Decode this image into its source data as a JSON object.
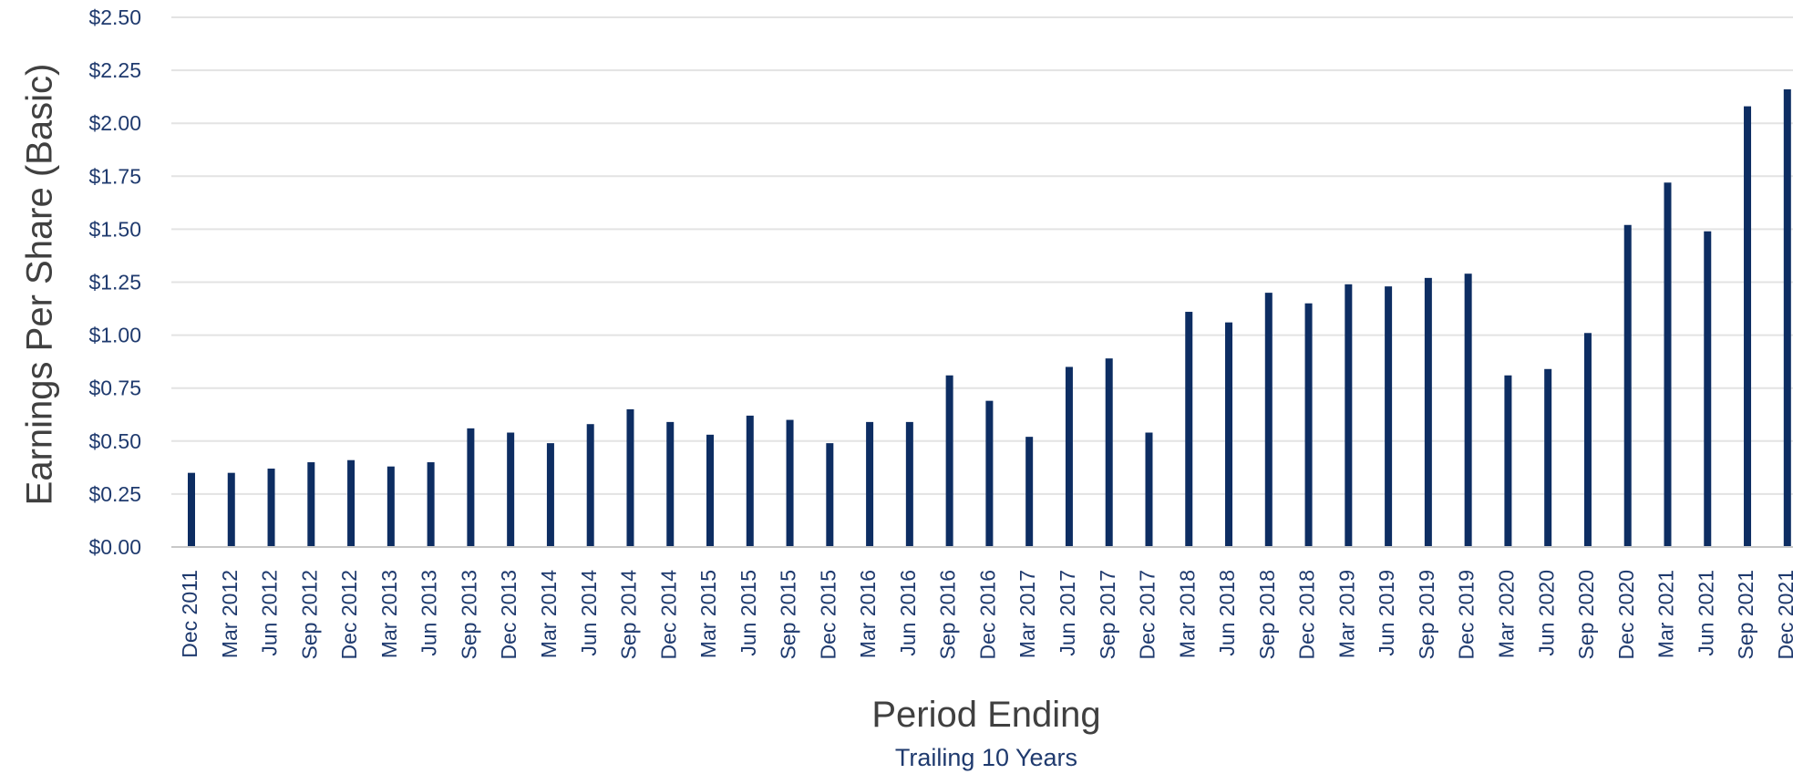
{
  "chart_data": {
    "type": "bar",
    "ylabel": "Earnings Per Share (Basic)",
    "xlabel": "Period Ending",
    "subtitle": "Trailing 10 Years",
    "ylim": [
      0,
      2.5
    ],
    "yticks": [
      0,
      0.25,
      0.5,
      0.75,
      1.0,
      1.25,
      1.5,
      1.75,
      2.0,
      2.25,
      2.5
    ],
    "ytick_labels": [
      "$0.00",
      "$0.25",
      "$0.50",
      "$0.75",
      "$1.00",
      "$1.25",
      "$1.50",
      "$1.75",
      "$2.00",
      "$2.25",
      "$2.50"
    ],
    "grid": true,
    "bar_color": "#0d2d62",
    "categories": [
      "Dec 2011",
      "Mar 2012",
      "Jun 2012",
      "Sep 2012",
      "Dec 2012",
      "Mar 2013",
      "Jun 2013",
      "Sep 2013",
      "Dec 2013",
      "Mar 2014",
      "Jun 2014",
      "Sep 2014",
      "Dec 2014",
      "Mar 2015",
      "Jun 2015",
      "Sep 2015",
      "Dec 2015",
      "Mar 2016",
      "Jun 2016",
      "Sep 2016",
      "Dec 2016",
      "Mar 2017",
      "Jun 2017",
      "Sep 2017",
      "Dec 2017",
      "Mar 2018",
      "Jun 2018",
      "Sep 2018",
      "Dec 2018",
      "Mar 2019",
      "Jun 2019",
      "Sep 2019",
      "Dec 2019",
      "Mar 2020",
      "Jun 2020",
      "Sep 2020",
      "Dec 2020",
      "Mar 2021",
      "Jun 2021",
      "Sep 2021",
      "Dec 2021"
    ],
    "values": [
      0.35,
      0.35,
      0.37,
      0.4,
      0.41,
      0.38,
      0.4,
      0.56,
      0.54,
      0.49,
      0.58,
      0.65,
      0.59,
      0.53,
      0.62,
      0.6,
      0.49,
      0.59,
      0.59,
      0.81,
      0.69,
      0.52,
      0.85,
      0.89,
      0.54,
      1.11,
      1.06,
      1.2,
      1.15,
      1.24,
      1.23,
      1.27,
      1.29,
      0.81,
      0.84,
      1.01,
      1.52,
      1.72,
      1.49,
      2.08,
      2.16
    ]
  }
}
